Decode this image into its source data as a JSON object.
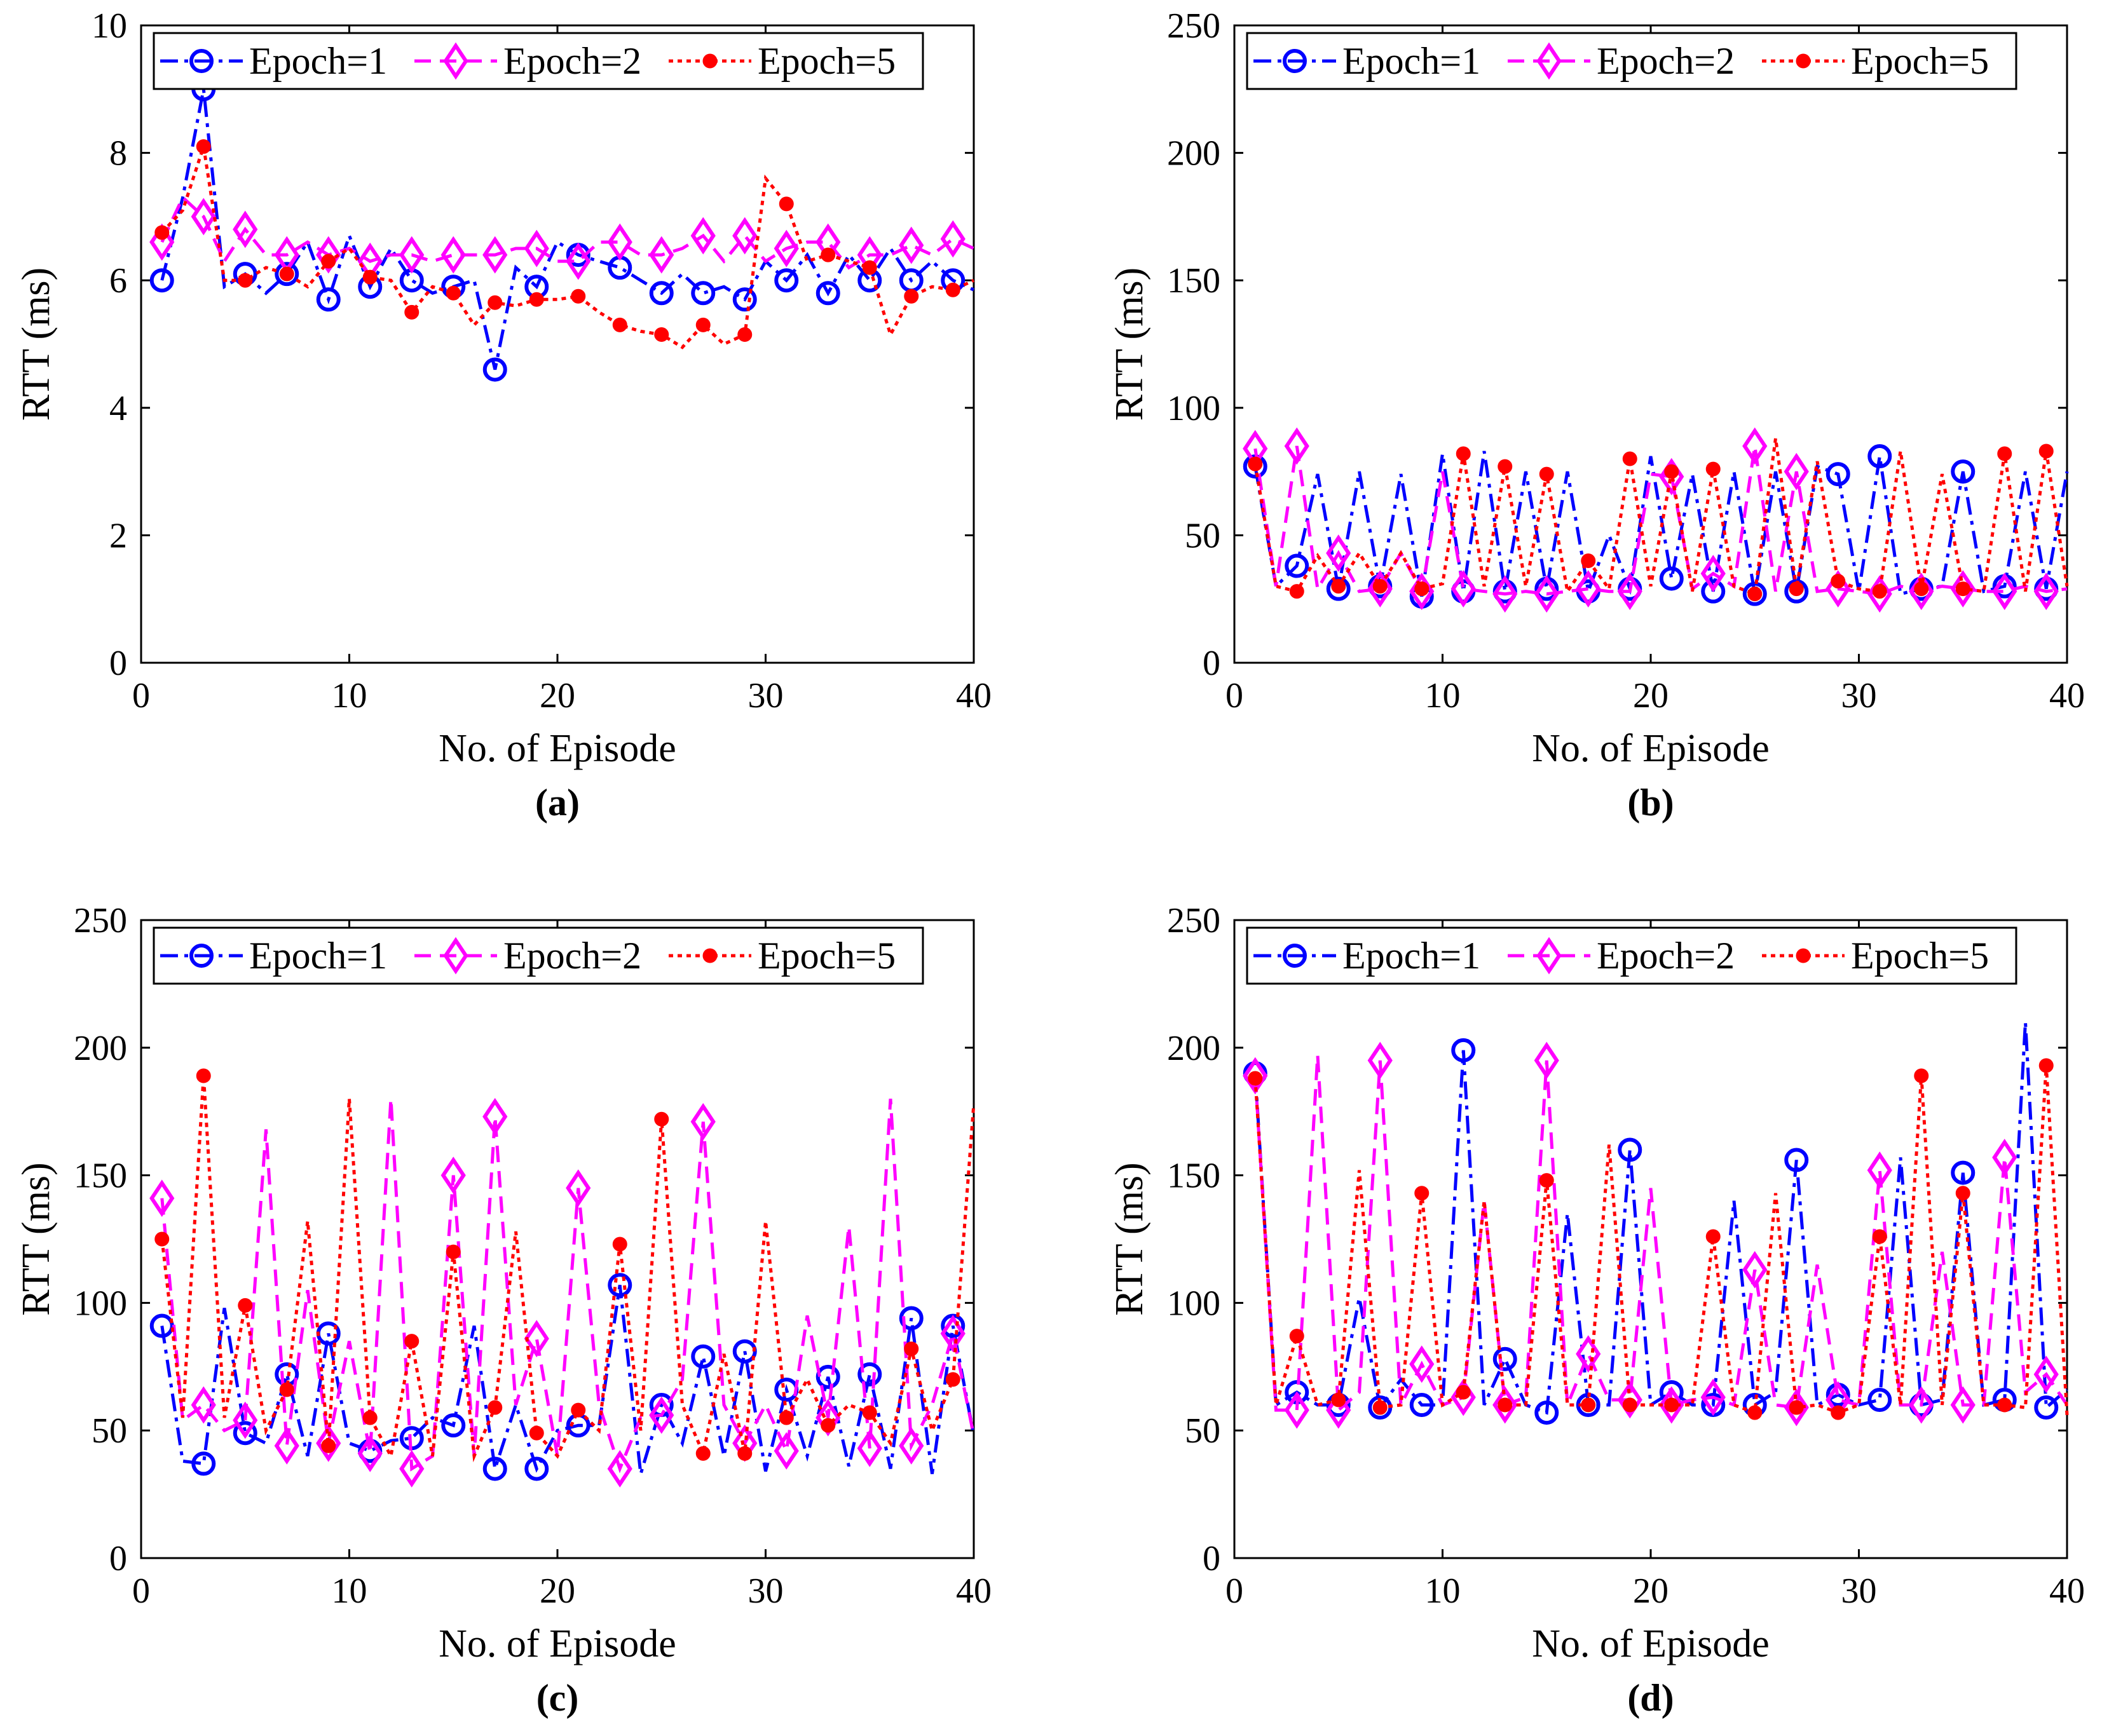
{
  "figure": {
    "colors": {
      "epoch1": "#0000ff",
      "epoch2": "#ff00ff",
      "epoch5": "#ff0000",
      "axis": "#000000"
    }
  },
  "chart_data": [
    {
      "type": "line",
      "caption": "(a)",
      "xlabel": "No. of Episode",
      "ylabel": "RTT (ms)",
      "xlim": [
        0,
        40
      ],
      "ylim": [
        0,
        10
      ],
      "xticks": [
        0,
        10,
        20,
        30,
        40
      ],
      "yticks": [
        0,
        2,
        4,
        6,
        8,
        10
      ],
      "legend_position": "top",
      "x": [
        1,
        2,
        3,
        4,
        5,
        6,
        7,
        8,
        9,
        10,
        11,
        12,
        13,
        14,
        15,
        16,
        17,
        18,
        19,
        20,
        21,
        22,
        23,
        24,
        25,
        26,
        27,
        28,
        29,
        30,
        31,
        32,
        33,
        34,
        35,
        36,
        37,
        38,
        39,
        40
      ],
      "series": [
        {
          "name": "Epoch=1",
          "style": "dashdot",
          "marker": "circle",
          "values": [
            6.0,
            7.3,
            9.0,
            5.9,
            6.1,
            5.8,
            6.1,
            6.6,
            5.7,
            6.7,
            5.9,
            6.5,
            6.0,
            5.8,
            5.9,
            6.0,
            4.6,
            6.2,
            5.9,
            6.6,
            6.4,
            6.3,
            6.2,
            6.0,
            5.8,
            6.1,
            5.8,
            5.9,
            5.7,
            6.3,
            6.0,
            6.4,
            5.8,
            6.4,
            6.0,
            6.5,
            6.0,
            6.3,
            6.0,
            5.85
          ]
        },
        {
          "name": "Epoch=2",
          "style": "dashed",
          "marker": "diamond",
          "values": [
            6.6,
            7.3,
            7.0,
            6.3,
            6.8,
            6.4,
            6.4,
            6.6,
            6.4,
            6.5,
            6.3,
            6.4,
            6.4,
            6.3,
            6.4,
            6.4,
            6.4,
            6.5,
            6.5,
            6.3,
            6.3,
            6.6,
            6.6,
            6.4,
            6.4,
            6.5,
            6.7,
            6.3,
            6.7,
            6.3,
            6.5,
            6.6,
            6.6,
            6.2,
            6.4,
            6.4,
            6.55,
            6.4,
            6.65,
            6.5
          ]
        },
        {
          "name": "Epoch=5",
          "style": "dotted",
          "marker": "star",
          "values": [
            6.75,
            7.1,
            8.1,
            6.0,
            6.0,
            6.2,
            6.1,
            5.9,
            6.3,
            6.5,
            6.05,
            6.0,
            5.5,
            5.9,
            5.8,
            5.3,
            5.65,
            5.6,
            5.7,
            5.7,
            5.75,
            5.5,
            5.3,
            5.2,
            5.15,
            4.95,
            5.3,
            5.0,
            5.15,
            7.6,
            7.2,
            6.3,
            6.4,
            6.3,
            6.2,
            5.15,
            5.75,
            5.9,
            5.85,
            6.0
          ]
        }
      ]
    },
    {
      "type": "line",
      "caption": "(b)",
      "xlabel": "No. of Episode",
      "ylabel": "RTT (ms)",
      "xlim": [
        0,
        40
      ],
      "ylim": [
        0,
        250
      ],
      "xticks": [
        0,
        10,
        20,
        30,
        40
      ],
      "yticks": [
        0,
        50,
        100,
        150,
        200,
        250
      ],
      "legend_position": "top",
      "x": [
        1,
        2,
        3,
        4,
        5,
        6,
        7,
        8,
        9,
        10,
        11,
        12,
        13,
        14,
        15,
        16,
        17,
        18,
        19,
        20,
        21,
        22,
        23,
        24,
        25,
        26,
        27,
        28,
        29,
        30,
        31,
        32,
        33,
        34,
        35,
        36,
        37,
        38,
        39,
        40
      ],
      "series": [
        {
          "name": "Epoch=1",
          "style": "dashdot",
          "marker": "circle",
          "values": [
            77,
            30,
            38,
            74,
            29,
            75,
            30,
            74,
            26,
            82,
            28,
            83,
            28,
            75,
            29,
            75,
            28,
            50,
            29,
            81,
            33,
            74,
            28,
            75,
            27,
            75,
            28,
            77,
            74,
            28,
            81,
            27,
            29,
            30,
            75,
            28,
            30,
            75,
            29,
            75
          ]
        },
        {
          "name": "Epoch=2",
          "style": "dashed",
          "marker": "diamond",
          "values": [
            84,
            30,
            85,
            29,
            43,
            28,
            29,
            43,
            28,
            75,
            29,
            28,
            27,
            28,
            27,
            28,
            29,
            28,
            28,
            74,
            73,
            29,
            35,
            30,
            85,
            28,
            75,
            28,
            29,
            28,
            27,
            30,
            28,
            30,
            29,
            28,
            28,
            30,
            28,
            29
          ]
        },
        {
          "name": "Epoch=5",
          "style": "dotted",
          "marker": "star",
          "values": [
            78,
            30,
            28,
            42,
            30,
            43,
            30,
            43,
            29,
            31,
            82,
            30,
            77,
            30,
            74,
            28,
            40,
            29,
            80,
            30,
            75,
            28,
            76,
            30,
            27,
            88,
            29,
            79,
            32,
            29,
            28,
            83,
            29,
            74,
            29,
            28,
            82,
            28,
            83,
            30
          ]
        }
      ]
    },
    {
      "type": "line",
      "caption": "(c)",
      "xlabel": "No. of Episode",
      "ylabel": "RTT (ms)",
      "xlim": [
        0,
        40
      ],
      "ylim": [
        0,
        250
      ],
      "xticks": [
        0,
        10,
        20,
        30,
        40
      ],
      "yticks": [
        0,
        50,
        100,
        150,
        200,
        250
      ],
      "legend_position": "top",
      "x": [
        1,
        2,
        3,
        4,
        5,
        6,
        7,
        8,
        9,
        10,
        11,
        12,
        13,
        14,
        15,
        16,
        17,
        18,
        19,
        20,
        21,
        22,
        23,
        24,
        25,
        26,
        27,
        28,
        29,
        30,
        31,
        32,
        33,
        34,
        35,
        36,
        37,
        38,
        39,
        40
      ],
      "series": [
        {
          "name": "Epoch=1",
          "style": "dashdot",
          "marker": "circle",
          "values": [
            91,
            38,
            37,
            98,
            49,
            45,
            72,
            40,
            88,
            45,
            42,
            46,
            47,
            55,
            52,
            91,
            35,
            60,
            35,
            50,
            52,
            52,
            107,
            33,
            60,
            45,
            79,
            40,
            81,
            34,
            66,
            40,
            71,
            36,
            72,
            35,
            94,
            33,
            91,
            48
          ]
        },
        {
          "name": "Epoch=2",
          "style": "dashed",
          "marker": "diamond",
          "values": [
            141,
            54,
            60,
            50,
            54,
            168,
            44,
            105,
            45,
            85,
            41,
            180,
            35,
            40,
            150,
            40,
            173,
            60,
            86,
            40,
            145,
            60,
            35,
            55,
            56,
            70,
            171,
            60,
            45,
            60,
            42,
            95,
            55,
            130,
            43,
            180,
            44,
            60,
            88,
            48
          ]
        },
        {
          "name": "Epoch=5",
          "style": "dotted",
          "marker": "star",
          "values": [
            125,
            55,
            189,
            55,
            99,
            50,
            66,
            132,
            44,
            180,
            55,
            40,
            85,
            40,
            120,
            40,
            59,
            128,
            49,
            40,
            58,
            50,
            123,
            50,
            172,
            60,
            41,
            80,
            41,
            132,
            55,
            70,
            52,
            60,
            57,
            45,
            82,
            50,
            70,
            178
          ]
        }
      ]
    },
    {
      "type": "line",
      "caption": "(d)",
      "xlabel": "No. of Episode",
      "ylabel": "RTT (ms)",
      "xlim": [
        0,
        40
      ],
      "ylim": [
        0,
        250
      ],
      "xticks": [
        0,
        10,
        20,
        30,
        40
      ],
      "yticks": [
        0,
        50,
        100,
        150,
        200,
        250
      ],
      "legend_position": "top",
      "x": [
        1,
        2,
        3,
        4,
        5,
        6,
        7,
        8,
        9,
        10,
        11,
        12,
        13,
        14,
        15,
        16,
        17,
        18,
        19,
        20,
        21,
        22,
        23,
        24,
        25,
        26,
        27,
        28,
        29,
        30,
        31,
        32,
        33,
        34,
        35,
        36,
        37,
        38,
        39,
        40
      ],
      "series": [
        {
          "name": "Epoch=1",
          "style": "dashdot",
          "marker": "circle",
          "values": [
            190,
            60,
            65,
            60,
            60,
            102,
            59,
            70,
            60,
            60,
            199,
            60,
            78,
            60,
            57,
            135,
            60,
            60,
            160,
            60,
            65,
            60,
            60,
            140,
            60,
            65,
            156,
            60,
            64,
            60,
            62,
            157,
            60,
            62,
            151,
            60,
            62,
            210,
            59,
            66
          ]
        },
        {
          "name": "Epoch=2",
          "style": "dashed",
          "marker": "diamond",
          "values": [
            189,
            58,
            58,
            197,
            58,
            65,
            195,
            60,
            76,
            60,
            63,
            140,
            60,
            63,
            195,
            60,
            80,
            62,
            62,
            145,
            60,
            62,
            63,
            60,
            113,
            60,
            59,
            115,
            62,
            60,
            152,
            60,
            60,
            120,
            60,
            60,
            157,
            65,
            72,
            60
          ]
        },
        {
          "name": "Epoch=5",
          "style": "dotted",
          "marker": "star",
          "values": [
            188,
            60,
            87,
            60,
            62,
            152,
            59,
            60,
            143,
            60,
            65,
            140,
            60,
            60,
            148,
            60,
            60,
            162,
            60,
            60,
            60,
            60,
            126,
            60,
            57,
            143,
            59,
            60,
            57,
            60,
            126,
            60,
            189,
            60,
            143,
            60,
            60,
            59,
            193,
            56
          ]
        }
      ]
    }
  ]
}
